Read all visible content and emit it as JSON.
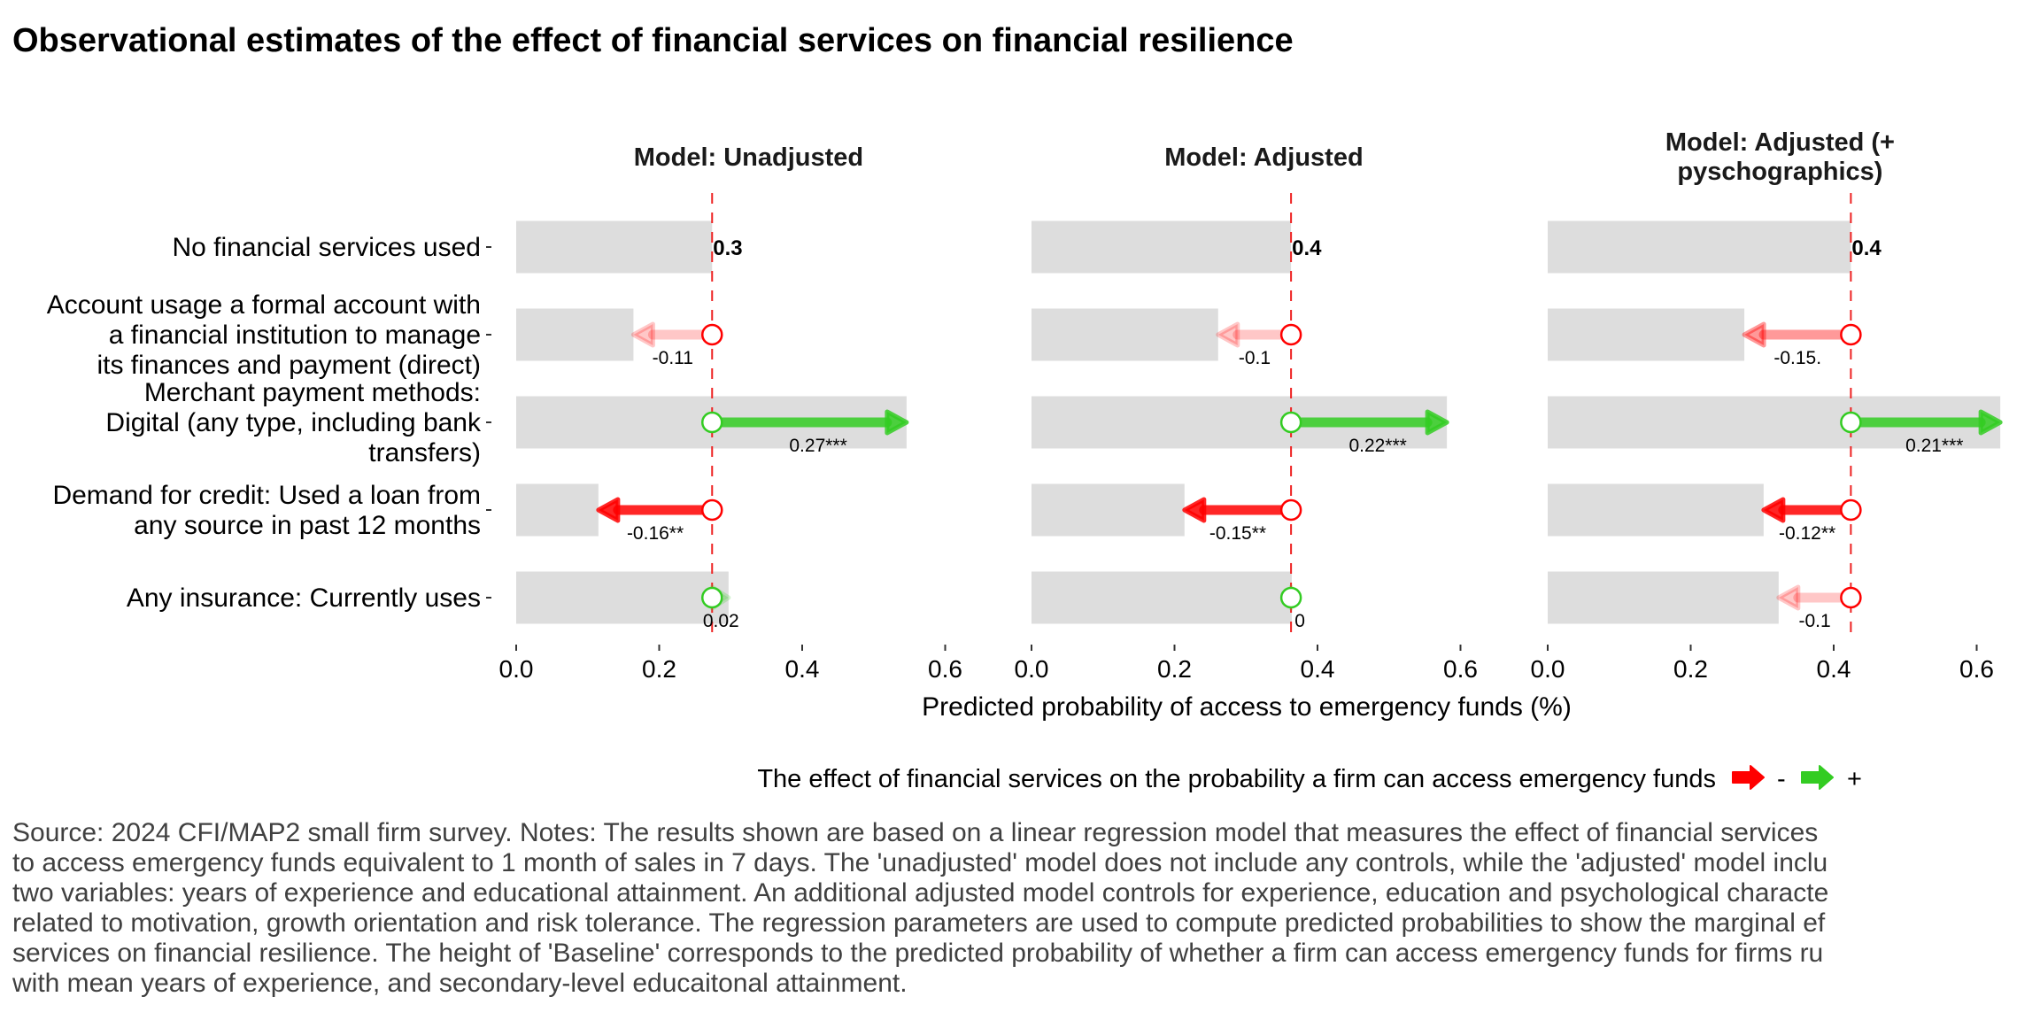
{
  "chart_data": {
    "type": "bar",
    "title": "Observational estimates of the effect of financial services on financial resilience",
    "xlabel": "Predicted probability of access to emergency funds (%)",
    "xlim": [
      0,
      0.65
    ],
    "x_ticks": [
      "0.0",
      "0.2",
      "0.4",
      "0.6"
    ],
    "x_tick_values": [
      0.0,
      0.2,
      0.4,
      0.6
    ],
    "categories": [
      [
        "No financial services used"
      ],
      [
        "Account usage a formal account with",
        "a financial institution to manage",
        "its finances and payment (direct)"
      ],
      [
        "Merchant payment methods:",
        "Digital (any type, including bank",
        "transfers)"
      ],
      [
        "Demand for credit: Used a loan from",
        "any source in past 12 months"
      ],
      [
        "Any insurance: Currently uses"
      ]
    ],
    "panels": [
      {
        "title": [
          "Model: Unadjusted"
        ],
        "baseline": 0.274,
        "baseline_label": "0.3",
        "predicted": [
          0.274,
          0.164,
          0.546,
          0.115,
          0.297
        ],
        "effects": [
          null,
          -0.11,
          0.27,
          -0.16,
          0.02
        ],
        "effect_labels": [
          "",
          "-0.11",
          "0.27***",
          "-0.16**",
          "0.02"
        ],
        "significant": [
          null,
          false,
          true,
          true,
          false
        ]
      },
      {
        "title": [
          "Model: Adjusted"
        ],
        "baseline": 0.363,
        "baseline_label": "0.4",
        "predicted": [
          0.363,
          0.261,
          0.581,
          0.214,
          0.364
        ],
        "effects": [
          null,
          -0.1,
          0.22,
          -0.15,
          0.0
        ],
        "effect_labels": [
          "",
          "-0.1",
          "0.22***",
          "-0.15**",
          "0"
        ],
        "significant": [
          null,
          false,
          true,
          true,
          false
        ]
      },
      {
        "title": [
          "Model: Adjusted (+",
          "pyschographics)"
        ],
        "baseline": 0.424,
        "baseline_label": "0.4",
        "predicted": [
          0.424,
          0.275,
          0.633,
          0.302,
          0.323
        ],
        "effects": [
          null,
          -0.15,
          0.21,
          -0.12,
          -0.1
        ],
        "effect_labels": [
          "",
          "-0.15.",
          "0.21***",
          "-0.12**",
          "-0.1"
        ],
        "significant": [
          null,
          "marginal",
          true,
          true,
          false
        ]
      }
    ],
    "legend": {
      "title": "The effect of financial services on the probability a firm can access emergency funds",
      "entries": [
        {
          "label": "-",
          "color": "#ff0000"
        },
        {
          "label": "+",
          "color": "#33cc22"
        }
      ],
      "position": "bottom"
    },
    "colors": {
      "bar": "#dddddd",
      "negative": "#ff0000",
      "positive": "#33cc22",
      "baseline_line": "#ee2222"
    },
    "caption": [
      "Source: 2024 CFI/MAP2 small firm survey. Notes: The results shown are based on a linear regression model that measures the effect of financial services",
      "to access emergency funds equivalent to 1 month of sales in 7 days. The 'unadjusted' model does not include any controls, while the 'adjusted' model inclu",
      "two variables: years of experience and educational attainment. An additional adjusted model controls for experience, education and psychological characte",
      "related to motivation, growth orientation and risk tolerance. The regression parameters are used to compute predicted probabilities to show the marginal ef",
      "services on financial resilience. The height of 'Baseline' corresponds to the predicted probability of whether a firm can access emergency funds for firms ru",
      "with mean years of experience, and secondary-level educaitonal attainment."
    ]
  }
}
